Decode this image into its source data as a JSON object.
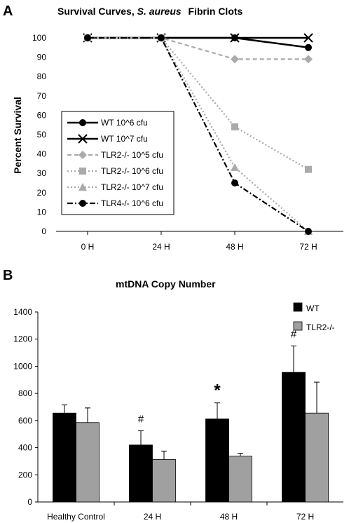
{
  "chart_data": [
    {
      "type": "line",
      "panel_label": "A",
      "title": "Survival Curves,",
      "title_italic": "S. aureus",
      "title_suffix": "Fibrin Clots",
      "ylabel": "Percent Survival",
      "xlabel": "",
      "categories": [
        "0 H",
        "24 H",
        "48 H",
        "72 H"
      ],
      "ylim": [
        0,
        100
      ],
      "yticks": [
        "0",
        "10",
        "20",
        "30",
        "40",
        "50",
        "60",
        "70",
        "80",
        "90",
        "100"
      ],
      "legend_position": "lower-left",
      "series": [
        {
          "name": "WT 10^6 cfu",
          "values": [
            100,
            100,
            100,
            95
          ],
          "color": "#000000",
          "dash": "solid",
          "marker": "circle"
        },
        {
          "name": "WT 10^7 cfu",
          "values": [
            100,
            100,
            100,
            100
          ],
          "color": "#000000",
          "dash": "solid",
          "marker": "x"
        },
        {
          "name": "TLR2-/- 10^5 cfu",
          "values": [
            100,
            100,
            89,
            89
          ],
          "color": "#aaaaaa",
          "dash": "dash",
          "marker": "diamond"
        },
        {
          "name": "TLR2-/- 10^6 cfu",
          "values": [
            100,
            100,
            54,
            32
          ],
          "color": "#aaaaaa",
          "dash": "dot",
          "marker": "square"
        },
        {
          "name": "TLR2-/- 10^7 cfu",
          "values": [
            100,
            100,
            33,
            0
          ],
          "color": "#aaaaaa",
          "dash": "dot",
          "marker": "triangle"
        },
        {
          "name": "TLR4-/- 10^6 cfu",
          "values": [
            100,
            100,
            25,
            0
          ],
          "color": "#000000",
          "dash": "dashdot",
          "marker": "circle"
        }
      ]
    },
    {
      "type": "bar",
      "panel_label": "B",
      "title": "mtDNA Copy Number",
      "xlabel": "",
      "ylabel": "",
      "categories": [
        "Healthy Control",
        "24 H",
        "48 H",
        "72 H"
      ],
      "ylim": [
        0,
        1400
      ],
      "yticks": [
        "0",
        "200",
        "400",
        "600",
        "800",
        "1000",
        "1200",
        "1400"
      ],
      "legend_position": "top-right",
      "series": [
        {
          "name": "WT",
          "values": [
            655,
            420,
            612,
            955
          ],
          "errors": [
            60,
            105,
            118,
            195
          ],
          "color": "#000000"
        },
        {
          "name": "TLR2-/-",
          "values": [
            585,
            313,
            338,
            655
          ],
          "errors": [
            108,
            62,
            20,
            228
          ],
          "color": "#a0a0a0"
        }
      ],
      "annotations": [
        {
          "category": "24 H",
          "text": "#"
        },
        {
          "category": "48 H",
          "text": "*"
        },
        {
          "category": "72 H",
          "text": "#"
        }
      ]
    }
  ]
}
